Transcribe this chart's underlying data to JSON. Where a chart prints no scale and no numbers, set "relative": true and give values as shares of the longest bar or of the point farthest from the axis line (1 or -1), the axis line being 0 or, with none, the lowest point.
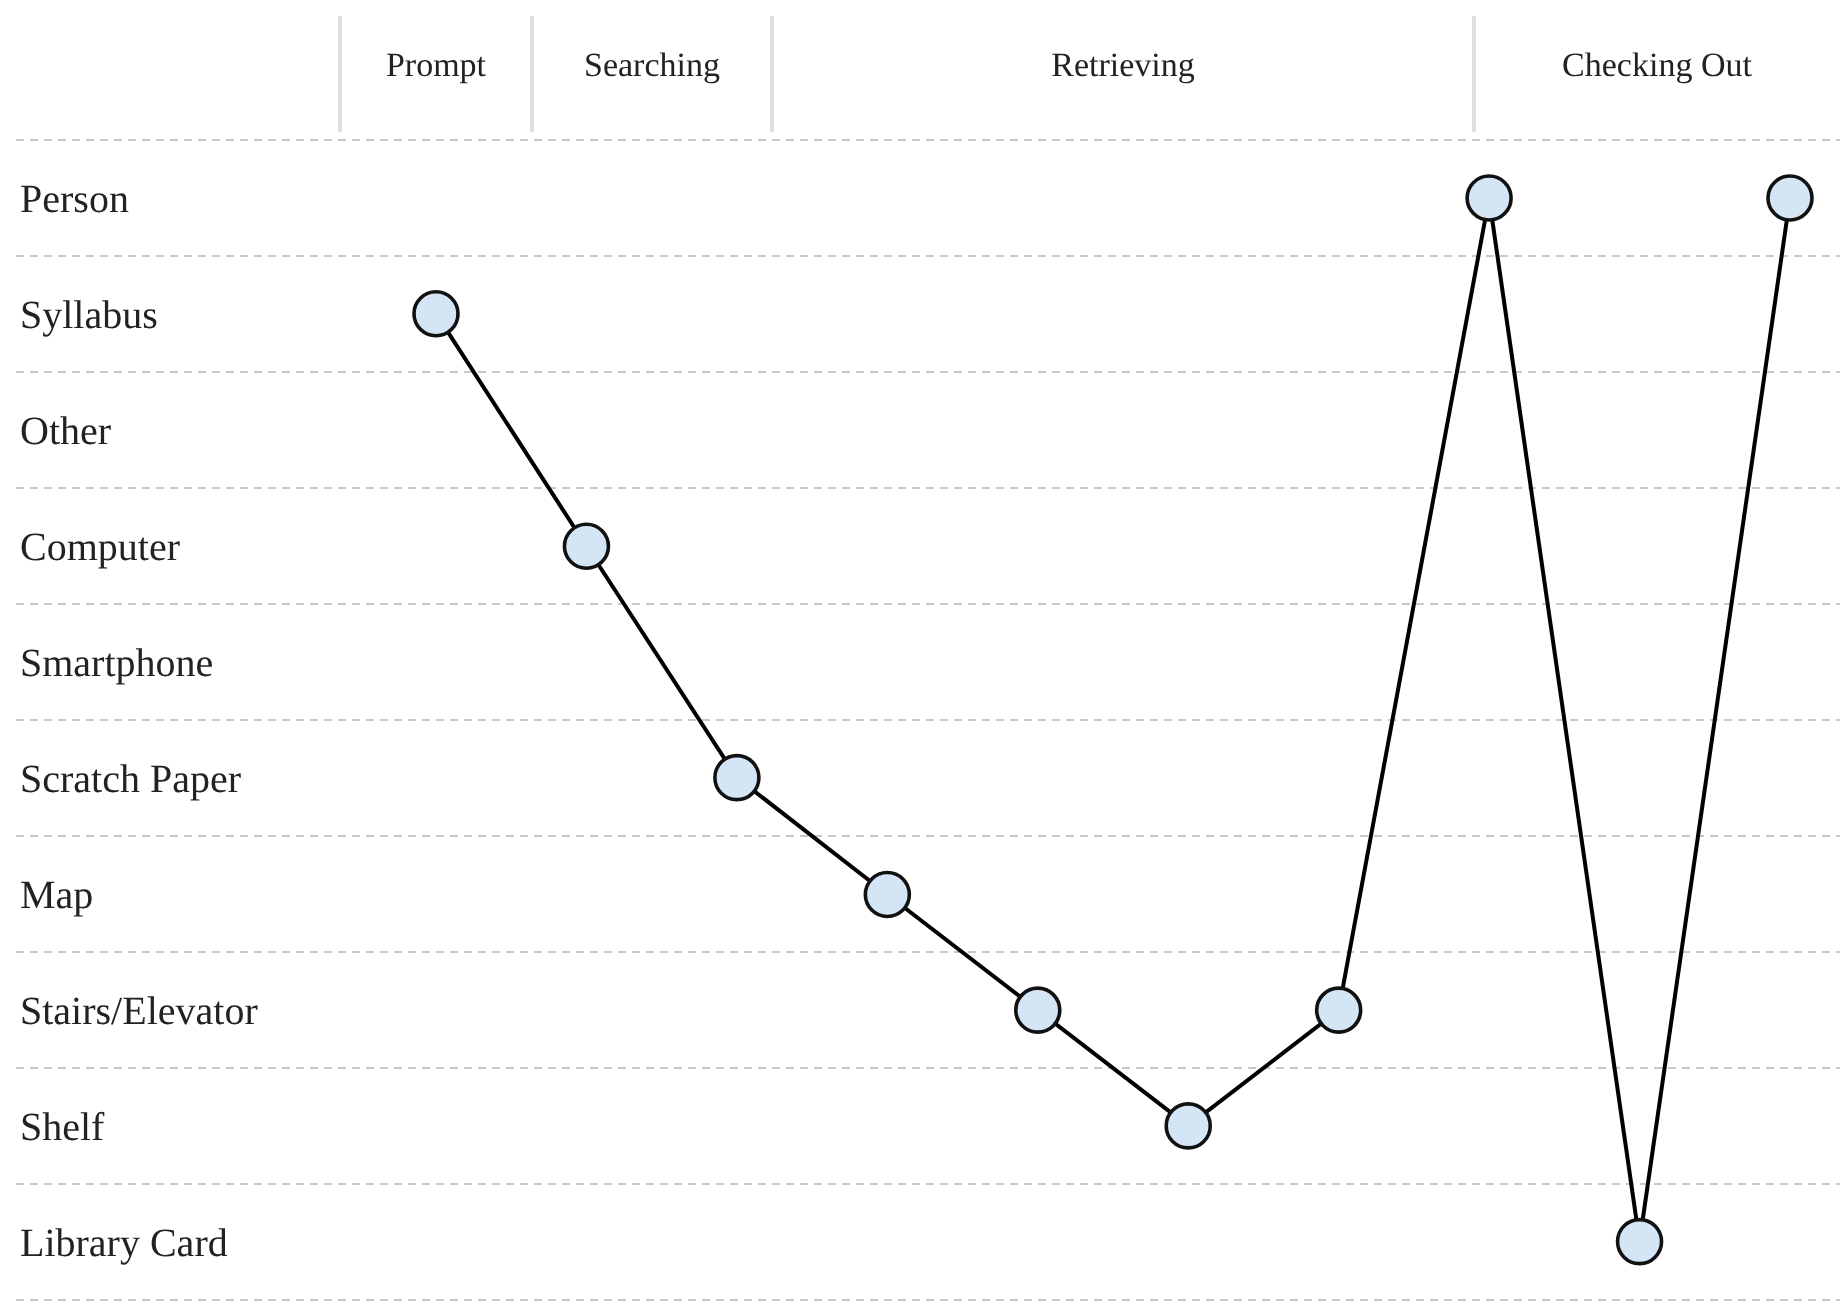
{
  "chart_data": {
    "type": "line",
    "categories": [
      null,
      null,
      null,
      null,
      null,
      null,
      null,
      null,
      null,
      null
    ],
    "series": [
      {
        "color": "#000000",
        "values": [
          0.895,
          0.684,
          0.474,
          0.368,
          0.263,
          0.158,
          0.263,
          1,
          0.053,
          1
        ]
      }
    ],
    "relative": true,
    "grid": true,
    "marker": "circle",
    "line_style": "solid",
    "annotations": [
      "Prompt",
      "Searching",
      "Retrieving",
      "Checking Out",
      "Person",
      "Syllabus",
      "Other",
      "Computer",
      "Smartphone",
      "Scratch Paper",
      "Map",
      "Stairs/Elevator",
      "Shelf",
      "Library Card"
    ]
  }
}
